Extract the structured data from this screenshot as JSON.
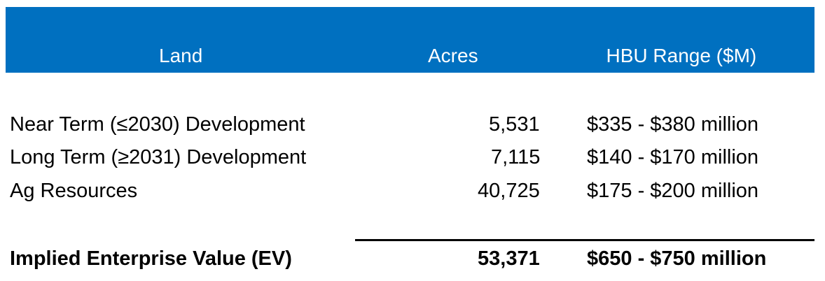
{
  "table": {
    "header": [
      "Land",
      "Acres",
      "HBU Range ($M)"
    ],
    "rows": [
      [
        "Near Term (≤2030) Development",
        "5,531",
        "$335 - $380 million"
      ],
      [
        "Long Term (≥2031) Development",
        "7,115",
        "$140 - $170 million"
      ],
      [
        "Ag Resources",
        "40,725",
        "$175 - $200 million"
      ]
    ],
    "total": [
      "Implied Enterprise Value (EV)",
      "53,371",
      "$650 - $750 million"
    ]
  }
}
